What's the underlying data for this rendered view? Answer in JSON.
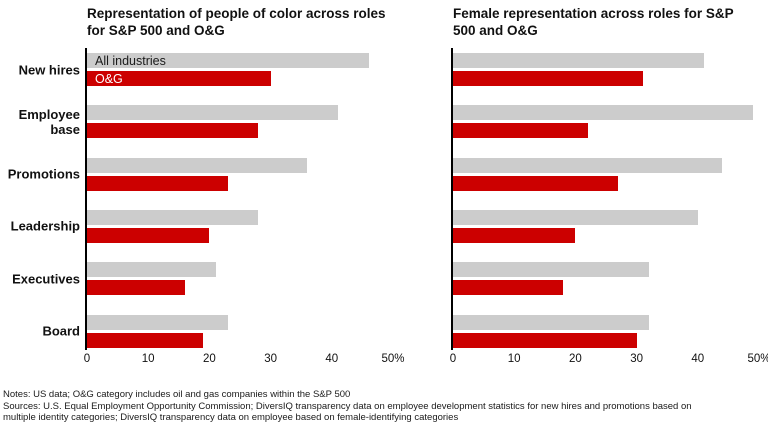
{
  "chart_data": [
    {
      "type": "bar",
      "orientation": "horizontal",
      "title": "Representation of people of color across roles for S&P 500 and O&G",
      "categories": [
        "New hires",
        "Employee base",
        "Promotions",
        "Leadership",
        "Executives",
        "Board"
      ],
      "series": [
        {
          "name": "All industries",
          "color": "#cccccc",
          "values": [
            46,
            41,
            36,
            28,
            21,
            23
          ]
        },
        {
          "name": "O&G",
          "color": "#cc0000",
          "values": [
            30,
            28,
            23,
            20,
            16,
            19
          ]
        }
      ],
      "xlim": [
        0,
        50
      ],
      "xticks": [
        0,
        10,
        20,
        30,
        40,
        50
      ],
      "xtick_labels": [
        "0",
        "10",
        "20",
        "30",
        "40",
        "50%"
      ],
      "legend": {
        "position": "inside-first-bars",
        "labels": [
          "All industries",
          "O&G"
        ]
      },
      "show_category_labels": true,
      "grid": false
    },
    {
      "type": "bar",
      "orientation": "horizontal",
      "title": "Female representation across roles for S&P 500 and O&G",
      "categories": [
        "New hires",
        "Employee base",
        "Promotions",
        "Leadership",
        "Executives",
        "Board"
      ],
      "series": [
        {
          "name": "All industries",
          "color": "#cccccc",
          "values": [
            41,
            49,
            44,
            40,
            32,
            32
          ]
        },
        {
          "name": "O&G",
          "color": "#cc0000",
          "values": [
            31,
            22,
            27,
            20,
            18,
            30
          ]
        }
      ],
      "xlim": [
        0,
        50
      ],
      "xticks": [
        0,
        10,
        20,
        30,
        40,
        50
      ],
      "xtick_labels": [
        "0",
        "10",
        "20",
        "30",
        "40",
        "50%"
      ],
      "legend": {
        "position": "none",
        "labels": []
      },
      "show_category_labels": false,
      "grid": false
    }
  ],
  "footer": {
    "notes": "Notes: US data; O&G category includes oil and gas companies within the S&P 500",
    "sources_line1": "Sources: U.S. Equal Employment Opportunity Commission; DiversIQ transparency data on employee development statistics for new hires and promotions based on",
    "sources_line2": "multiple identity categories; DiversIQ transparency data on employee based on female-identifying categories"
  },
  "colors": {
    "all_industries_bar": "#cccccc",
    "og_bar": "#cc0000",
    "axis_line": "#000000",
    "legend_text_dark": "#1a1a1a",
    "legend_text_light": "#ffffff"
  }
}
